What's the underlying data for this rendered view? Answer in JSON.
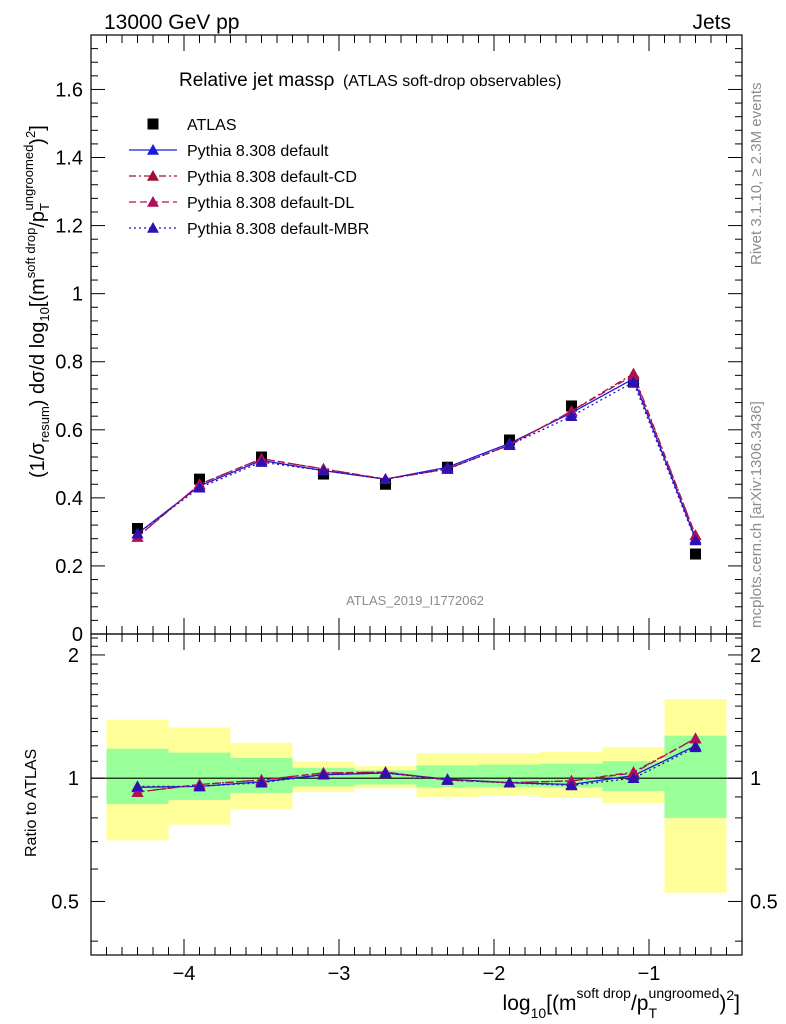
{
  "header": {
    "left": "13000 GeV pp",
    "right": "Jets"
  },
  "plot_title": "Relative jet massρ (ATLAS soft-drop observables)",
  "plot_title_main": "Relative jet massρ",
  "plot_title_sub": "(ATLAS soft-drop observables)",
  "side_labels": {
    "rivet": "Rivet 3.1.10, ≥ 2.3M events",
    "mcplots": "mcplots.cern.ch [arXiv:1306.3436]"
  },
  "watermark": "ATLAS_2019_I1772062",
  "axes": {
    "ylabel_top": "(1/σresum) dσ/d log10[(msoft drop/pTungroomed)2]",
    "ylabel_bottom": "Ratio to ATLAS",
    "xlabel": "log10[(msoft drop/pTungroomed)2]"
  },
  "chart_data": [
    {
      "type": "scatter",
      "panel": "main",
      "xlim": [
        -4.6,
        -0.4
      ],
      "ylim": [
        0,
        1.76
      ],
      "yticks": [
        "0",
        "0.2",
        "0.4",
        "0.6",
        "0.8",
        "1",
        "1.2",
        "1.4",
        "1.6"
      ],
      "x": [
        -4.3,
        -3.9,
        -3.5,
        -3.1,
        -2.7,
        -2.3,
        -1.9,
        -1.5,
        -1.1,
        -0.7
      ],
      "series": [
        {
          "name": "ATLAS",
          "style": "marker",
          "color": "#000000",
          "values": [
            0.31,
            0.455,
            0.52,
            0.47,
            0.44,
            0.49,
            0.57,
            0.67,
            0.74,
            0.235
          ]
        },
        {
          "name": "Pythia 8.308 default",
          "style": "solid",
          "color": "#1a1adc",
          "values": [
            0.295,
            0.435,
            0.51,
            0.48,
            0.455,
            0.49,
            0.56,
            0.65,
            0.75,
            0.28
          ]
        },
        {
          "name": "Pythia 8.308 default-CD",
          "style": "dashdot",
          "color": "#a01030",
          "values": [
            0.285,
            0.44,
            0.515,
            0.485,
            0.455,
            0.485,
            0.555,
            0.655,
            0.765,
            0.29
          ]
        },
        {
          "name": "Pythia 8.308 default-DL",
          "style": "dashed",
          "color": "#b0105a",
          "values": [
            0.285,
            0.44,
            0.515,
            0.485,
            0.455,
            0.485,
            0.555,
            0.655,
            0.76,
            0.29
          ]
        },
        {
          "name": "Pythia 8.308 default-MBR",
          "style": "dotted",
          "color": "#3010b0",
          "values": [
            0.295,
            0.43,
            0.505,
            0.48,
            0.455,
            0.485,
            0.555,
            0.64,
            0.74,
            0.275
          ]
        }
      ]
    },
    {
      "type": "scatter",
      "panel": "ratio",
      "xlim": [
        -4.6,
        -0.4
      ],
      "ylim": [
        0.37,
        2.25
      ],
      "yscale": "log",
      "yticks": [
        "0.5",
        "1",
        "2"
      ],
      "xticks": [
        "−4",
        "−3",
        "−2",
        "−1"
      ],
      "bins": [
        [
          -4.5,
          -4.1
        ],
        [
          -4.1,
          -3.7
        ],
        [
          -3.7,
          -3.3
        ],
        [
          -3.3,
          -2.9
        ],
        [
          -2.9,
          -2.5
        ],
        [
          -2.5,
          -2.1
        ],
        [
          -2.1,
          -1.7
        ],
        [
          -1.7,
          -1.3
        ],
        [
          -1.3,
          -0.9
        ],
        [
          -0.9,
          -0.5
        ]
      ],
      "bands": {
        "green": {
          "lo": [
            0.865,
            0.885,
            0.92,
            0.955,
            0.965,
            0.95,
            0.95,
            0.95,
            0.93,
            0.8
          ],
          "hi": [
            1.18,
            1.155,
            1.12,
            1.06,
            1.045,
            1.075,
            1.08,
            1.085,
            1.1,
            1.27
          ]
        },
        "yellow": {
          "lo": [
            0.705,
            0.77,
            0.84,
            0.925,
            0.945,
            0.9,
            0.905,
            0.895,
            0.87,
            0.525
          ],
          "hi": [
            1.39,
            1.33,
            1.22,
            1.1,
            1.07,
            1.15,
            1.15,
            1.16,
            1.19,
            1.56
          ]
        }
      },
      "x": [
        -4.3,
        -3.9,
        -3.5,
        -3.1,
        -2.7,
        -2.3,
        -1.9,
        -1.5,
        -1.1,
        -0.7
      ],
      "series": [
        {
          "name": "Pythia 8.308 default",
          "style": "solid",
          "color": "#1a1adc",
          "values": [
            0.95,
            0.955,
            0.98,
            1.02,
            1.03,
            0.995,
            0.975,
            0.965,
            1.015,
            1.2
          ]
        },
        {
          "name": "Pythia 8.308 default-CD",
          "style": "dashdot",
          "color": "#a01030",
          "values": [
            0.925,
            0.965,
            0.99,
            1.03,
            1.035,
            0.99,
            0.975,
            0.985,
            1.035,
            1.25
          ]
        },
        {
          "name": "Pythia 8.308 default-DL",
          "style": "dashed",
          "color": "#b0105a",
          "values": [
            0.925,
            0.965,
            0.99,
            1.03,
            1.035,
            0.99,
            0.975,
            0.985,
            1.03,
            1.25
          ]
        },
        {
          "name": "Pythia 8.308 default-MBR",
          "style": "dotted",
          "color": "#3010b0",
          "values": [
            0.955,
            0.955,
            0.975,
            1.02,
            1.03,
            0.99,
            0.975,
            0.96,
            1.0,
            1.19
          ]
        }
      ]
    }
  ]
}
